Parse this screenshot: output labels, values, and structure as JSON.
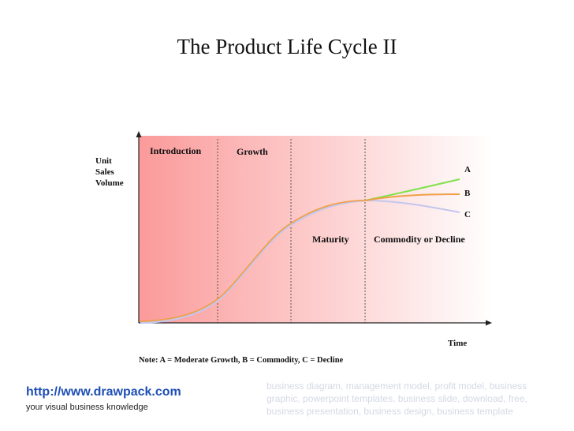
{
  "title": "The Product Life Cycle II",
  "y_axis_label": [
    "Unit",
    "Sales",
    "Volume"
  ],
  "x_axis_label": "Time",
  "stages": [
    "Introduction",
    "Growth",
    "Maturity",
    "Commodity or Decline"
  ],
  "curves": [
    {
      "label": "A",
      "color": "#7ee24a"
    },
    {
      "label": "B",
      "color": "#f0a048"
    },
    {
      "label": "C",
      "color": "#c4c6ee"
    }
  ],
  "note": "Note: A = Moderate Growth, B = Commodity, C = Decline",
  "footer": {
    "url": "http://www.drawpack.com",
    "tagline": "your visual business knowledge",
    "keywords": "business diagram, management model, profit model, business graphic, powerpoint templates, business slide, download, free, business presentation, business design, business template"
  },
  "colors": {
    "gradient_start": "#fb9a9a",
    "gradient_end": "#ffffff",
    "axis": "#222222",
    "divider": "#555555"
  }
}
